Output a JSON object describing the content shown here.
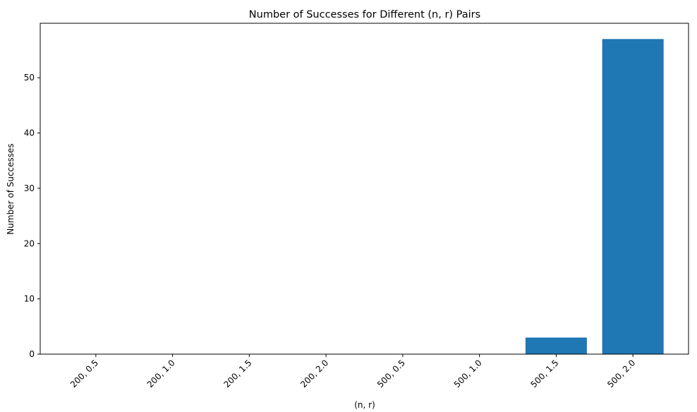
{
  "chart_data": {
    "type": "bar",
    "title": "Number of Successes for Different (n, r) Pairs",
    "xlabel": "(n, r)",
    "ylabel": "Number of Successes",
    "categories": [
      "200, 0.5",
      "200, 1.0",
      "200, 1.5",
      "200, 2.0",
      "500, 0.5",
      "500, 1.0",
      "500, 1.5",
      "500, 2.0"
    ],
    "values": [
      0,
      0,
      0,
      0,
      0,
      0,
      3,
      57
    ],
    "ylim": [
      0,
      59.85
    ],
    "yticks": [
      0,
      10,
      20,
      30,
      40,
      50
    ],
    "grid": false,
    "bar_color": "#1f77b4"
  }
}
